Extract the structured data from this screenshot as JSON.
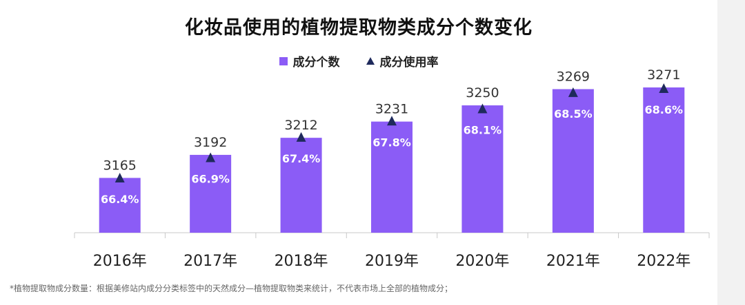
{
  "chart_data": {
    "type": "bar",
    "title": "化妆品使用的植物提取物类成分个数变化",
    "categories": [
      "2016年",
      "2017年",
      "2018年",
      "2019年",
      "2020年",
      "2021年",
      "2022年"
    ],
    "series": [
      {
        "name": "成分个数",
        "type": "bar",
        "values": [
          3165,
          3192,
          3212,
          3231,
          3250,
          3269,
          3271
        ],
        "value_labels": [
          "3165",
          "3192",
          "3212",
          "3231",
          "3250",
          "3269",
          "3271"
        ],
        "color": "#8b5cf6"
      },
      {
        "name": "成分使用率",
        "type": "marker",
        "values": [
          66.4,
          66.9,
          67.4,
          67.8,
          68.1,
          68.5,
          68.6
        ],
        "value_labels": [
          "66.4%",
          "66.9%",
          "67.4%",
          "67.8%",
          "68.1%",
          "68.5%",
          "68.6%"
        ],
        "color": "#1f2a5c"
      }
    ],
    "xlabel": "",
    "ylabel": "",
    "grid": false,
    "legend_position": "top-center"
  },
  "footnote": "*植物提取物成分数量：根据美修站内成分分类标签中的天然成分—植物提取物类来统计，不代表市场上全部的植物成分；"
}
